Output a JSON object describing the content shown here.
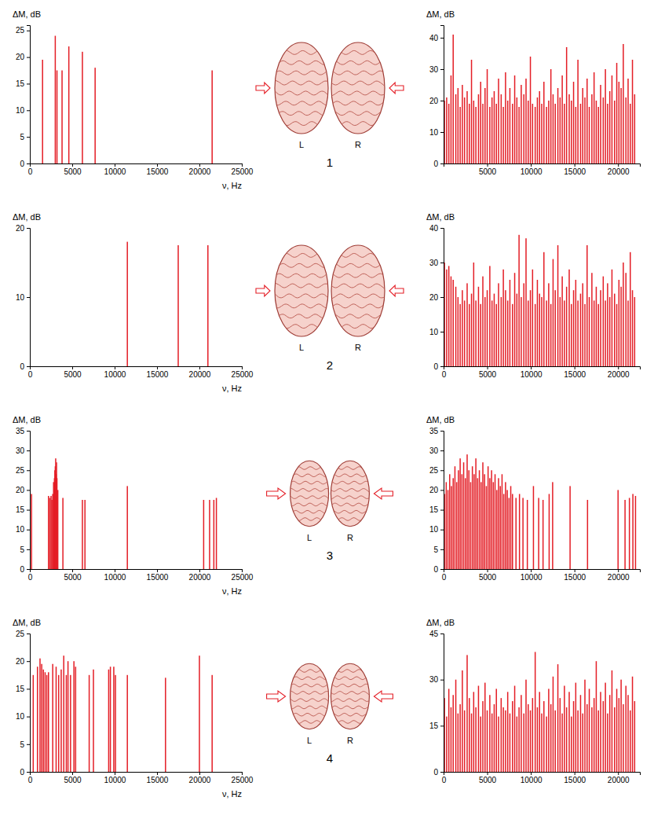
{
  "chart_data": [
    {
      "type": "bar",
      "y_label": "ΔM, dB",
      "x_label": "ν, Hz",
      "color": "#e41e26",
      "x": [
        1500,
        3000,
        3200,
        3800,
        4600,
        6200,
        7700,
        21500
      ],
      "values": [
        19.5,
        24,
        17.5,
        17.5,
        22,
        21,
        18,
        17.5
      ],
      "xlim": [
        0,
        25000
      ],
      "xticks": [
        0,
        5000,
        10000,
        15000,
        20000,
        25000
      ],
      "ylim": [
        0,
        26
      ],
      "yticks": [
        0,
        5,
        10,
        15,
        20,
        25
      ]
    },
    {
      "type": "bar",
      "y_label": "ΔM, dB",
      "color": "#e41e26",
      "x": [
        100,
        350,
        600,
        850,
        1100,
        1400,
        1650,
        1900,
        2150,
        2400,
        2700,
        2950,
        3200,
        3450,
        3700,
        4000,
        4250,
        4500,
        4750,
        5000,
        5300,
        5550,
        5800,
        6050,
        6300,
        6600,
        6850,
        7100,
        7350,
        7600,
        7900,
        8150,
        8400,
        8650,
        8900,
        9200,
        9450,
        9700,
        9950,
        10200,
        10500,
        10750,
        11000,
        11250,
        11500,
        11800,
        12050,
        12300,
        12550,
        12800,
        13100,
        13350,
        13600,
        13850,
        14100,
        14400,
        14650,
        14900,
        15150,
        15400,
        15700,
        15950,
        16200,
        16450,
        16700,
        17000,
        17250,
        17500,
        17750,
        18000,
        18300,
        18550,
        18800,
        19050,
        19300,
        19600,
        19850,
        20100,
        20350,
        20600,
        20900,
        21150,
        21400,
        21650,
        21900
      ],
      "values": [
        20,
        21,
        19,
        28,
        41,
        22,
        24,
        18,
        25,
        21,
        23,
        19,
        33,
        20,
        18,
        22,
        26,
        19,
        24,
        30,
        18,
        21,
        23,
        19,
        27,
        22,
        18,
        29,
        20,
        24,
        19,
        28,
        21,
        18,
        25,
        22,
        27,
        20,
        34,
        19,
        18,
        21,
        23,
        19,
        26,
        18,
        20,
        30,
        22,
        19,
        24,
        21,
        28,
        19,
        37,
        22,
        20,
        26,
        18,
        33,
        19,
        24,
        21,
        27,
        18,
        22,
        29,
        20,
        18,
        25,
        21,
        30,
        19,
        23,
        28,
        20,
        32,
        26,
        24,
        38,
        21,
        27,
        19,
        33,
        22
      ],
      "xlim": [
        0,
        22500
      ],
      "xticks": [
        5000,
        10000,
        15000,
        20000
      ],
      "ylim": [
        0,
        44
      ],
      "yticks": [
        0,
        10,
        20,
        30,
        40
      ]
    },
    {
      "type": "bar",
      "y_label": "ΔM, dB",
      "x_label": "ν, Hz",
      "color": "#e41e26",
      "x": [
        11500,
        17500,
        21000
      ],
      "values": [
        18,
        17.5,
        17.5
      ],
      "xlim": [
        0,
        25000
      ],
      "xticks": [
        0,
        5000,
        10000,
        15000,
        20000,
        25000
      ],
      "ylim": [
        0,
        20
      ],
      "yticks": [
        0,
        10,
        20
      ]
    },
    {
      "type": "bar",
      "y_label": "ΔM, dB",
      "color": "#e41e26",
      "x": [
        100,
        350,
        600,
        850,
        1100,
        1400,
        1650,
        1900,
        2150,
        2400,
        2700,
        2950,
        3200,
        3450,
        3700,
        4000,
        4250,
        4500,
        4750,
        5000,
        5300,
        5550,
        5800,
        6050,
        6300,
        6600,
        6850,
        7100,
        7350,
        7600,
        7900,
        8150,
        8400,
        8650,
        8900,
        9200,
        9450,
        9700,
        9950,
        10200,
        10500,
        10750,
        11000,
        11250,
        11500,
        11800,
        12050,
        12300,
        12550,
        12800,
        13100,
        13350,
        13600,
        13850,
        14100,
        14400,
        14650,
        14900,
        15150,
        15400,
        15700,
        15950,
        16200,
        16450,
        16700,
        17000,
        17250,
        17500,
        17750,
        18000,
        18300,
        18550,
        18800,
        19050,
        19300,
        19600,
        19850,
        20100,
        20350,
        20600,
        20900,
        21150,
        21400,
        21650,
        21900
      ],
      "values": [
        30,
        28,
        29,
        26,
        25,
        23,
        20,
        18,
        22,
        19,
        24,
        18,
        21,
        30,
        19,
        23,
        18,
        26,
        20,
        22,
        29,
        19,
        21,
        18,
        24,
        20,
        28,
        22,
        19,
        25,
        18,
        27,
        21,
        38,
        20,
        24,
        37,
        19,
        22,
        28,
        18,
        25,
        21,
        20,
        33,
        19,
        24,
        18,
        31,
        22,
        35,
        20,
        26,
        19,
        23,
        28,
        18,
        22,
        25,
        19,
        21,
        24,
        18,
        35,
        20,
        27,
        19,
        23,
        18,
        22,
        26,
        19,
        24,
        20,
        28,
        21,
        18,
        25,
        23,
        30,
        27,
        19,
        33,
        22,
        20
      ],
      "xlim": [
        0,
        22500
      ],
      "xticks": [
        0,
        5000,
        10000,
        15000,
        20000
      ],
      "ylim": [
        0,
        40
      ],
      "yticks": [
        0,
        10,
        20,
        30,
        40
      ]
    },
    {
      "type": "bar",
      "y_label": "ΔM, dB",
      "x_label": "ν, Hz",
      "color": "#e41e26",
      "x": [
        200,
        2200,
        2350,
        2500,
        2600,
        2700,
        2800,
        2850,
        2900,
        2950,
        3000,
        3050,
        3100,
        3150,
        3200,
        3300,
        3900,
        6200,
        6500,
        11500,
        20500,
        21200,
        21700,
        22000
      ],
      "values": [
        19,
        18.5,
        18,
        18.5,
        17.5,
        19,
        22,
        20,
        23,
        25,
        26,
        28,
        24,
        27,
        23,
        20,
        18,
        17.5,
        17.5,
        21,
        17.5,
        17.5,
        17.5,
        18
      ],
      "xlim": [
        0,
        25000
      ],
      "xticks": [
        0,
        5000,
        10000,
        15000,
        20000,
        25000
      ],
      "ylim": [
        0,
        35
      ],
      "yticks": [
        0,
        5,
        10,
        15,
        20,
        25,
        30,
        35
      ]
    },
    {
      "type": "bar",
      "y_label": "ΔM, dB",
      "color": "#e41e26",
      "x": [
        100,
        300,
        500,
        700,
        900,
        1100,
        1300,
        1500,
        1700,
        1900,
        2100,
        2300,
        2500,
        2700,
        2900,
        3100,
        3300,
        3500,
        3700,
        3900,
        4100,
        4300,
        4500,
        4700,
        4900,
        5100,
        5300,
        5500,
        5700,
        5900,
        6100,
        6300,
        6500,
        6700,
        6900,
        7100,
        7300,
        7500,
        7700,
        7900,
        8300,
        8700,
        9100,
        9600,
        10300,
        10900,
        11400,
        12100,
        12500,
        14500,
        16500,
        20000,
        20800,
        21300,
        21700,
        22000
      ],
      "values": [
        19,
        22,
        20,
        24,
        21,
        23,
        26,
        22,
        25,
        28,
        24,
        27,
        23,
        29,
        25,
        22,
        26,
        24,
        28,
        23,
        25,
        22,
        27,
        24,
        21,
        26,
        23,
        25,
        22,
        24,
        20,
        23,
        21,
        24,
        19,
        22,
        20,
        18,
        21,
        19,
        18,
        19,
        18,
        17.5,
        21,
        18,
        17.5,
        19,
        22,
        21,
        17.5,
        20,
        17.5,
        18,
        19,
        18.5
      ],
      "xlim": [
        0,
        22500
      ],
      "xticks": [
        0,
        5000,
        10000,
        15000,
        20000
      ],
      "ylim": [
        0,
        35
      ],
      "yticks": [
        0,
        5,
        10,
        15,
        20,
        25,
        30,
        35
      ]
    },
    {
      "type": "bar",
      "y_label": "ΔM, dB",
      "x_label": "ν, Hz",
      "color": "#e41e26",
      "x": [
        400,
        900,
        1200,
        1400,
        1600,
        1800,
        2000,
        2200,
        2700,
        3100,
        3400,
        3700,
        4000,
        4300,
        4500,
        4800,
        5200,
        5400,
        7000,
        7500,
        9300,
        9500,
        9900,
        10100,
        11500,
        16000,
        20000,
        21500
      ],
      "values": [
        17.5,
        19,
        20.5,
        19.5,
        18.5,
        18,
        17.5,
        18,
        19.5,
        19,
        17.5,
        18.5,
        21,
        17.5,
        20,
        17.5,
        20,
        19,
        17.5,
        18.5,
        18.5,
        19,
        19,
        17.5,
        17.5,
        17,
        21,
        17.5
      ],
      "xlim": [
        0,
        25000
      ],
      "xticks": [
        0,
        5000,
        10000,
        15000,
        20000,
        25000
      ],
      "ylim": [
        0,
        25
      ],
      "yticks": [
        0,
        5,
        10,
        15,
        20,
        25
      ]
    },
    {
      "type": "bar",
      "y_label": "ΔM, dB",
      "color": "#e41e26",
      "x": [
        100,
        350,
        600,
        850,
        1100,
        1400,
        1650,
        1900,
        2150,
        2400,
        2700,
        2950,
        3200,
        3450,
        3700,
        4000,
        4250,
        4500,
        4750,
        5000,
        5300,
        5550,
        5800,
        6050,
        6300,
        6600,
        6850,
        7100,
        7350,
        7600,
        7900,
        8150,
        8400,
        8650,
        8900,
        9200,
        9450,
        9700,
        9950,
        10200,
        10500,
        10750,
        11000,
        11250,
        11500,
        11800,
        12050,
        12300,
        12550,
        12800,
        13100,
        13350,
        13600,
        13850,
        14100,
        14400,
        14650,
        14900,
        15150,
        15400,
        15700,
        15950,
        16200,
        16450,
        16700,
        17000,
        17250,
        17500,
        17750,
        18000,
        18300,
        18550,
        18800,
        19050,
        19300,
        19600,
        19850,
        20100,
        20350,
        20600,
        20900,
        21150,
        21400,
        21650,
        21900
      ],
      "values": [
        24,
        18,
        27,
        21,
        25,
        30,
        19,
        22,
        33,
        20,
        38,
        24,
        19,
        26,
        21,
        28,
        18,
        23,
        29,
        20,
        25,
        19,
        22,
        27,
        18,
        24,
        21,
        20,
        26,
        19,
        23,
        28,
        18,
        21,
        25,
        19,
        30,
        22,
        20,
        24,
        39,
        21,
        26,
        19,
        23,
        18,
        27,
        22,
        31,
        20,
        35,
        24,
        19,
        28,
        21,
        26,
        18,
        23,
        29,
        20,
        25,
        19,
        30,
        22,
        27,
        21,
        24,
        36,
        20,
        26,
        23,
        29,
        19,
        25,
        33,
        21,
        27,
        24,
        30,
        22,
        28,
        25,
        20,
        31,
        23
      ],
      "xlim": [
        0,
        22500
      ],
      "xticks": [
        0,
        5000,
        10000,
        15000,
        20000
      ],
      "ylim": [
        0,
        45
      ],
      "yticks": [
        0,
        15,
        30,
        45
      ]
    }
  ],
  "panels": [
    {
      "number": "1",
      "left_label": "L",
      "right_label": "R"
    },
    {
      "number": "2",
      "left_label": "L",
      "right_label": "R"
    },
    {
      "number": "3",
      "left_label": "L",
      "right_label": "R"
    },
    {
      "number": "4",
      "left_label": "L",
      "right_label": "R"
    }
  ]
}
